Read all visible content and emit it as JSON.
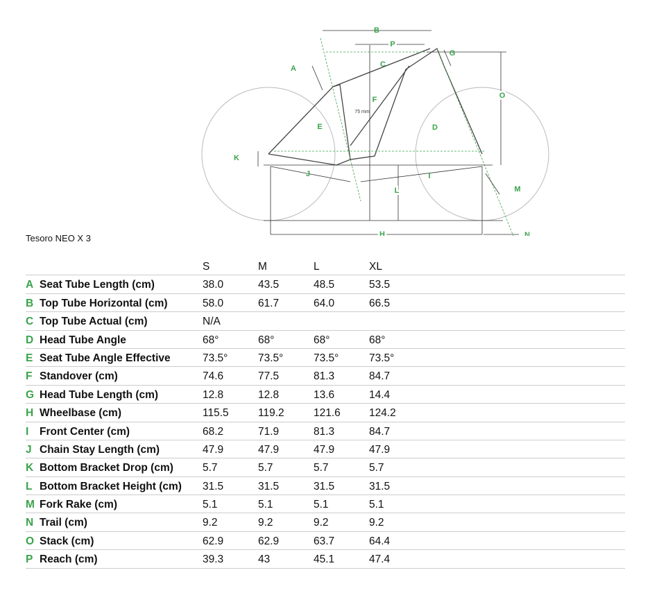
{
  "title": "Tesoro NEO X 3",
  "diagram": {
    "labels": [
      "A",
      "B",
      "C",
      "D",
      "E",
      "F",
      "G",
      "H",
      "I",
      "J",
      "K",
      "L",
      "M",
      "N",
      "O",
      "P"
    ],
    "note": "75 mm"
  },
  "table": {
    "sizes": [
      "S",
      "M",
      "L",
      "XL"
    ],
    "rows": [
      {
        "letter": "A",
        "name": "Seat Tube Length (cm)",
        "values": [
          "38.0",
          "43.5",
          "48.5",
          "53.5"
        ]
      },
      {
        "letter": "B",
        "name": "Top Tube Horizontal (cm)",
        "values": [
          "58.0",
          "61.7",
          "64.0",
          "66.5"
        ]
      },
      {
        "letter": "C",
        "name": "Top Tube Actual (cm)",
        "values": [
          "N/A"
        ]
      },
      {
        "letter": "D",
        "name": "Head Tube Angle",
        "values": [
          "68°",
          "68°",
          "68°",
          "68°"
        ]
      },
      {
        "letter": "E",
        "name": "Seat Tube Angle Effective",
        "values": [
          "73.5°",
          "73.5°",
          "73.5°",
          "73.5°"
        ]
      },
      {
        "letter": "F",
        "name": "Standover (cm)",
        "values": [
          "74.6",
          "77.5",
          "81.3",
          "84.7"
        ]
      },
      {
        "letter": "G",
        "name": "Head Tube Length (cm)",
        "values": [
          "12.8",
          "12.8",
          "13.6",
          "14.4"
        ]
      },
      {
        "letter": "H",
        "name": "Wheelbase (cm)",
        "values": [
          "115.5",
          "119.2",
          "121.6",
          "124.2"
        ]
      },
      {
        "letter": "I",
        "name": "Front Center (cm)",
        "values": [
          "68.2",
          "71.9",
          "81.3",
          "84.7"
        ]
      },
      {
        "letter": "J",
        "name": "Chain Stay Length (cm)",
        "values": [
          "47.9",
          "47.9",
          "47.9",
          "47.9"
        ]
      },
      {
        "letter": "K",
        "name": "Bottom Bracket Drop (cm)",
        "values": [
          "5.7",
          "5.7",
          "5.7",
          "5.7"
        ]
      },
      {
        "letter": "L",
        "name": "Bottom Bracket Height (cm)",
        "values": [
          "31.5",
          "31.5",
          "31.5",
          "31.5"
        ]
      },
      {
        "letter": "M",
        "name": "Fork Rake (cm)",
        "values": [
          "5.1",
          "5.1",
          "5.1",
          "5.1"
        ]
      },
      {
        "letter": "N",
        "name": "Trail (cm)",
        "values": [
          "9.2",
          "9.2",
          "9.2",
          "9.2"
        ]
      },
      {
        "letter": "O",
        "name": "Stack (cm)",
        "values": [
          "62.9",
          "62.9",
          "63.7",
          "64.4"
        ]
      },
      {
        "letter": "P",
        "name": "Reach (cm)",
        "values": [
          "39.3",
          "43",
          "45.1",
          "47.4"
        ]
      }
    ]
  }
}
